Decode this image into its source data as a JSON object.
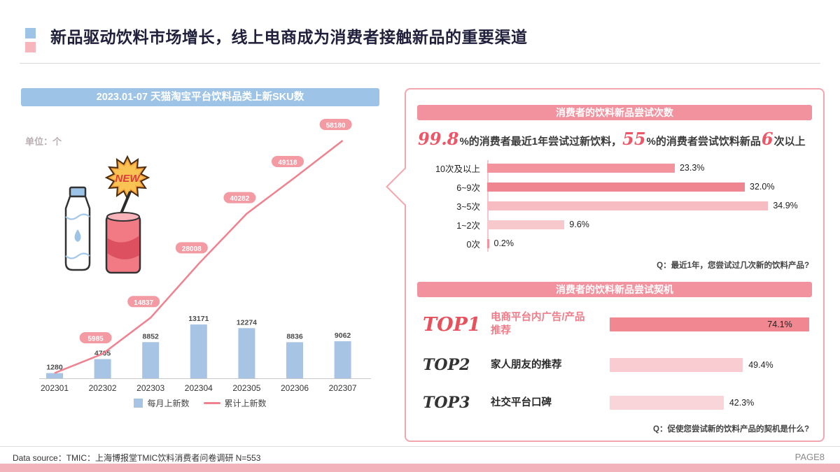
{
  "title": {
    "text": "新品驱动饮料市场增长，线上电商成为消费者接触新品的重要渠道"
  },
  "left_panel": {
    "header": "2023.01-07 天猫淘宝平台饮料品类上新SKU数",
    "unit": "单位：个",
    "legend": [
      "每月上新数",
      "累计上新数"
    ],
    "illustration_badge": "NEW"
  },
  "right_panel": {
    "trials": {
      "header": "消费者的饮料新品尝试次数",
      "summary": {
        "p1": "99.8",
        "p2": "%的消费者最近1年尝试过新饮料，",
        "p3": "55",
        "p4": "%的消费者尝试饮料新品",
        "p5": "6",
        "p6": "次以上"
      },
      "question": "Q：最近1年，您尝试过几次新的饮料产品?"
    },
    "triggers": {
      "header": "消费者的饮料新品尝试契机",
      "question": "Q：促使您尝试新的饮料产品的契机是什么?"
    }
  },
  "footer": {
    "source": "Data source：TMIC：上海博报堂TMIC饮料消费者问卷调研 N=553",
    "page": "PAGE8"
  },
  "colors": {
    "blue_accent": "#9dc3e6",
    "bar_blue": "#a7c4e4",
    "pink_header": "#f2929e",
    "line_pink": "#ef828e",
    "highlight_red": "#ee5566",
    "panel_border": "#f3a6ae",
    "bottom_strip": "#f3b3ba"
  },
  "chart_data": [
    {
      "type": "bar",
      "subtype": "bar+line combo",
      "title": "2023.01-07 天猫淘宝平台饮料品类上新SKU数",
      "ylabel": "单位：个",
      "categories": [
        "202301",
        "202302",
        "202303",
        "202304",
        "202305",
        "202306",
        "202307"
      ],
      "series": [
        {
          "name": "每月上新数",
          "type": "bar",
          "color": "#a7c4e4",
          "values": [
            1280,
            4705,
            8852,
            13171,
            12274,
            8836,
            9062
          ]
        },
        {
          "name": "累计上新数",
          "type": "line",
          "color": "#ef828e",
          "badge_color": "#f49aa3",
          "values": [
            1280,
            5985,
            14837,
            28008,
            40282,
            49118,
            58180
          ]
        }
      ],
      "ylim": [
        0,
        60000
      ],
      "grid": false,
      "legend_position": "bottom"
    },
    {
      "type": "bar",
      "orientation": "horizontal",
      "title": "消费者的饮料新品尝试次数",
      "categories": [
        "10次及以上",
        "6~9次",
        "3~5次",
        "1~2次",
        "0次"
      ],
      "values": [
        23.3,
        32.0,
        34.9,
        9.6,
        0.2
      ],
      "labels": [
        "23.3%",
        "32.0%",
        "34.9%",
        "9.6%",
        "0.2%"
      ],
      "bar_colors": [
        "#f2939d",
        "#ee8591",
        "#f6bcc2",
        "#f7c9cd",
        "#f2939d"
      ],
      "xlim": [
        0,
        40
      ]
    },
    {
      "type": "bar",
      "orientation": "horizontal",
      "title": "消费者的饮料新品尝试契机",
      "categories": [
        "TOP1",
        "TOP2",
        "TOP3"
      ],
      "item_labels": [
        "电商平台内广告/产品推荐",
        "家人朋友的推荐",
        "社交平台口碑"
      ],
      "values": [
        74.1,
        49.4,
        42.3
      ],
      "labels": [
        "74.1%",
        "49.4%",
        "42.3%"
      ],
      "bar_colors": [
        "#f08791",
        "#f8ccd1",
        "#f9d4d8"
      ],
      "rank_colors": [
        "#e8505b",
        "#333333",
        "#333333"
      ],
      "value_inside": [
        true,
        false,
        false
      ],
      "xlim": [
        0,
        80
      ]
    }
  ]
}
